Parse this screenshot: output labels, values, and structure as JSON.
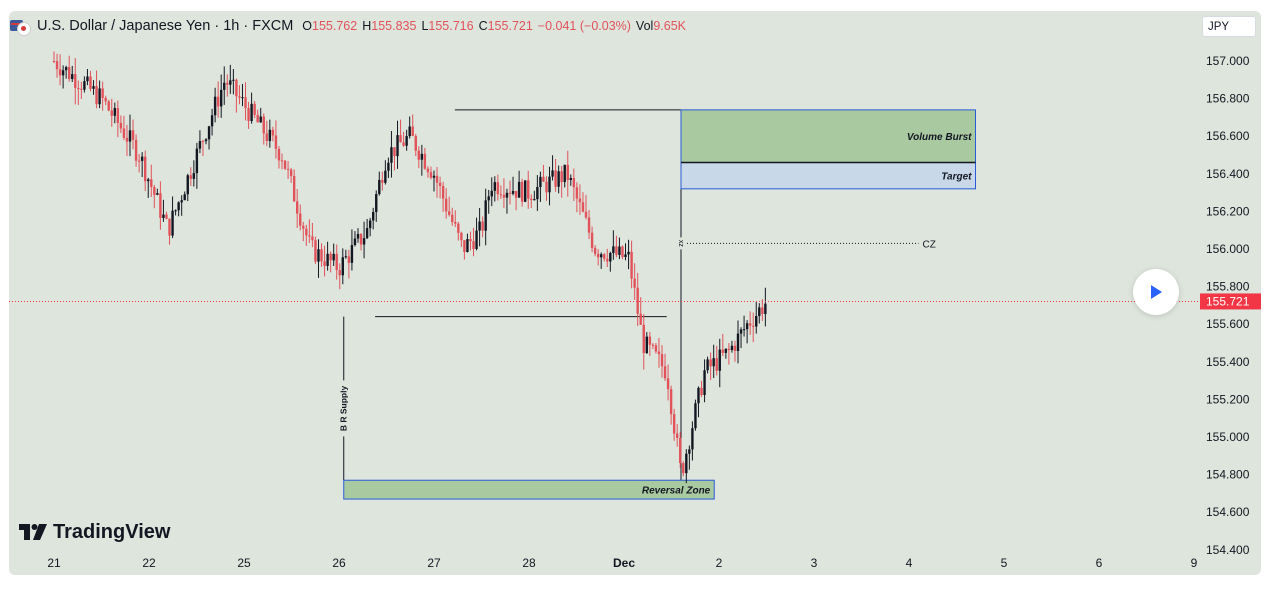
{
  "header": {
    "symbol_title": "U.S. Dollar / Japanese Yen · 1h · FXCM",
    "open_label": "O",
    "open_value": "155.762",
    "high_label": "H",
    "high_value": "155.835",
    "low_label": "L",
    "low_value": "155.716",
    "close_label": "C",
    "close_value": "155.721",
    "change": "−0.041 (−0.03%)",
    "vol_label": "Vol",
    "vol_value": "9.65K"
  },
  "currency_selector": "JPY",
  "brand": "TradingView",
  "icons": [
    "usd-jpy-flag-icon",
    "play-icon",
    "tradingview-logo-icon"
  ],
  "colors": {
    "background": "#dde5dc",
    "down_candle": "#e2525a",
    "up_candle": "#131722",
    "price_label": "#f23645",
    "zone_green": "#a9c9a0",
    "zone_blue": "#c9d8e8",
    "zone_border": "#2a5bd7"
  },
  "chart_data": {
    "type": "candlestick",
    "y_axis": {
      "range": [
        154.3,
        157.2
      ],
      "ticks": [
        "157.000",
        "156.800",
        "156.600",
        "156.400",
        "156.200",
        "156.000",
        "155.800",
        "155.600",
        "155.400",
        "155.200",
        "155.000",
        "154.800",
        "154.600",
        "154.400"
      ]
    },
    "x_axis": {
      "ticks": [
        "21",
        "22",
        "25",
        "26",
        "27",
        "28",
        "Dec",
        "2",
        "3",
        "4",
        "5",
        "6",
        "9"
      ]
    },
    "last_price": "155.721",
    "price_anchors": [
      {
        "x": 0.0,
        "close": 157.0
      },
      {
        "x": 0.5,
        "close": 156.8
      },
      {
        "x": 0.9,
        "close": 156.5
      },
      {
        "x": 1.2,
        "close": 156.1
      },
      {
        "x": 1.5,
        "close": 156.5
      },
      {
        "x": 1.8,
        "close": 156.9
      },
      {
        "x": 2.1,
        "close": 156.7
      },
      {
        "x": 2.4,
        "close": 156.5
      },
      {
        "x": 2.7,
        "close": 156.0
      },
      {
        "x": 3.0,
        "close": 155.9
      },
      {
        "x": 3.3,
        "close": 156.1
      },
      {
        "x": 3.5,
        "close": 156.5
      },
      {
        "x": 3.75,
        "close": 156.6
      },
      {
        "x": 4.0,
        "close": 156.4
      },
      {
        "x": 4.3,
        "close": 156.0
      },
      {
        "x": 4.5,
        "close": 156.1
      },
      {
        "x": 4.6,
        "close": 156.35
      },
      {
        "x": 5.0,
        "close": 156.3
      },
      {
        "x": 5.4,
        "close": 156.4
      },
      {
        "x": 5.7,
        "close": 156.0
      },
      {
        "x": 6.05,
        "close": 155.95
      },
      {
        "x": 6.2,
        "close": 155.5
      },
      {
        "x": 6.45,
        "close": 155.35
      },
      {
        "x": 6.6,
        "close": 154.8
      },
      {
        "x": 6.85,
        "close": 155.35
      },
      {
        "x": 7.1,
        "close": 155.45
      },
      {
        "x": 7.3,
        "close": 155.6
      },
      {
        "x": 7.5,
        "close": 155.72
      }
    ],
    "annotations": {
      "volume_burst": {
        "label": "Volume Burst",
        "price_range": [
          156.46,
          156.74
        ],
        "x_range": [
          6.6,
          9.7
        ]
      },
      "target": {
        "label": "Target",
        "price_range": [
          156.32,
          156.46
        ],
        "x_range": [
          6.6,
          9.7
        ]
      },
      "reversal_zone": {
        "label": "Reversal Zone",
        "price_range": [
          154.67,
          154.77
        ],
        "x_range": [
          3.05,
          6.95
        ]
      },
      "cz": {
        "label": "CZ",
        "price": 156.03,
        "x_range": [
          6.6,
          9.1
        ]
      },
      "br_supply": {
        "label": "B R Supply",
        "x": 3.05,
        "price_range": [
          154.77,
          155.64
        ]
      },
      "vertical_label": "xz",
      "range_top": 156.74,
      "range_bottom": 155.64
    }
  }
}
